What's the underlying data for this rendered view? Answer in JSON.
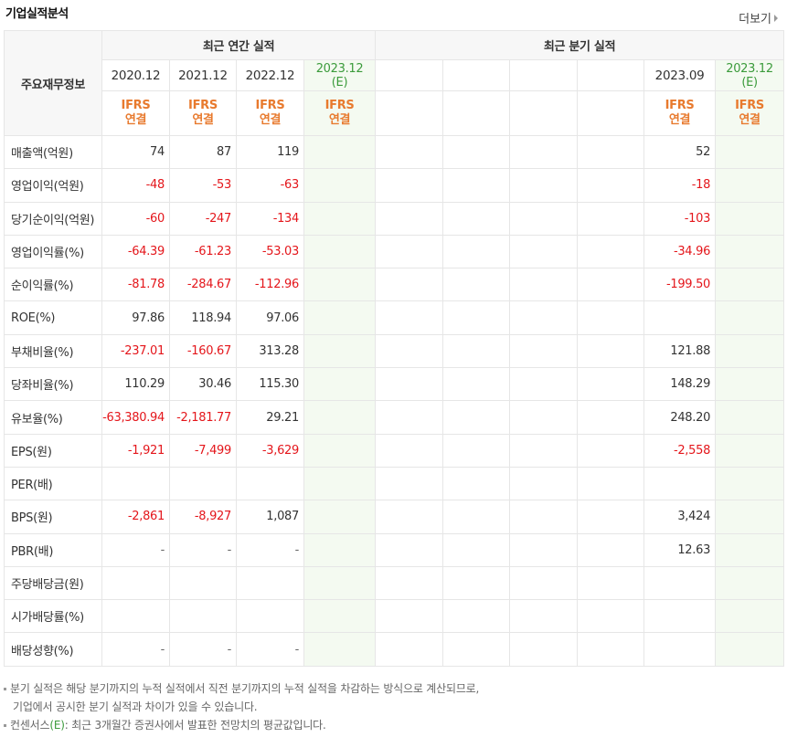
{
  "header": {
    "title": "기업실적분석",
    "more_label": "더보기"
  },
  "table": {
    "row_header_label": "주요재무정보",
    "annual_group_label": "최근 연간 실적",
    "quarter_group_label": "최근 분기 실적",
    "annual_periods": [
      "2020.12",
      "2021.12",
      "2022.12",
      "2023.12"
    ],
    "estimate_tag": "(E)",
    "quarter_periods": [
      "",
      "",
      "",
      "",
      "2023.09",
      "2023.12"
    ],
    "ifrs_label": "IFRS",
    "consolidated_label": "연결",
    "rows": [
      {
        "label": "매출액(억원)",
        "annual": [
          "74",
          "87",
          "119",
          ""
        ],
        "quarter": [
          "",
          "",
          "",
          "",
          "52",
          ""
        ]
      },
      {
        "label": "영업이익(억원)",
        "annual": [
          "-48",
          "-53",
          "-63",
          ""
        ],
        "quarter": [
          "",
          "",
          "",
          "",
          "-18",
          ""
        ]
      },
      {
        "label": "당기순이익(억원)",
        "annual": [
          "-60",
          "-247",
          "-134",
          ""
        ],
        "quarter": [
          "",
          "",
          "",
          "",
          "-103",
          ""
        ]
      },
      {
        "label": "영업이익률(%)",
        "annual": [
          "-64.39",
          "-61.23",
          "-53.03",
          ""
        ],
        "quarter": [
          "",
          "",
          "",
          "",
          "-34.96",
          ""
        ]
      },
      {
        "label": "순이익률(%)",
        "annual": [
          "-81.78",
          "-284.67",
          "-112.96",
          ""
        ],
        "quarter": [
          "",
          "",
          "",
          "",
          "-199.50",
          ""
        ]
      },
      {
        "label": "ROE(%)",
        "annual": [
          "97.86",
          "118.94",
          "97.06",
          ""
        ],
        "quarter": [
          "",
          "",
          "",
          "",
          "",
          ""
        ]
      },
      {
        "label": "부채비율(%)",
        "annual": [
          "-237.01",
          "-160.67",
          "313.28",
          ""
        ],
        "quarter": [
          "",
          "",
          "",
          "",
          "121.88",
          ""
        ]
      },
      {
        "label": "당좌비율(%)",
        "annual": [
          "110.29",
          "30.46",
          "115.30",
          ""
        ],
        "quarter": [
          "",
          "",
          "",
          "",
          "148.29",
          ""
        ]
      },
      {
        "label": "유보율(%)",
        "annual": [
          "-63,380.94",
          "-2,181.77",
          "29.21",
          ""
        ],
        "quarter": [
          "",
          "",
          "",
          "",
          "248.20",
          ""
        ]
      },
      {
        "label": "EPS(원)",
        "annual": [
          "-1,921",
          "-7,499",
          "-3,629",
          ""
        ],
        "quarter": [
          "",
          "",
          "",
          "",
          "-2,558",
          ""
        ]
      },
      {
        "label": "PER(배)",
        "annual": [
          "",
          "",
          "",
          ""
        ],
        "quarter": [
          "",
          "",
          "",
          "",
          "",
          ""
        ]
      },
      {
        "label": "BPS(원)",
        "annual": [
          "-2,861",
          "-8,927",
          "1,087",
          ""
        ],
        "quarter": [
          "",
          "",
          "",
          "",
          "3,424",
          ""
        ]
      },
      {
        "label": "PBR(배)",
        "annual": [
          "-",
          "-",
          "-",
          ""
        ],
        "quarter": [
          "",
          "",
          "",
          "",
          "12.63",
          ""
        ]
      },
      {
        "label": "주당배당금(원)",
        "annual": [
          "",
          "",
          "",
          ""
        ],
        "quarter": [
          "",
          "",
          "",
          "",
          "",
          ""
        ]
      },
      {
        "label": "시가배당률(%)",
        "annual": [
          "",
          "",
          "",
          ""
        ],
        "quarter": [
          "",
          "",
          "",
          "",
          "",
          ""
        ]
      },
      {
        "label": "배당성향(%)",
        "annual": [
          "-",
          "-",
          "-",
          ""
        ],
        "quarter": [
          "",
          "",
          "",
          "",
          "",
          ""
        ]
      }
    ]
  },
  "notes": {
    "line1": "분기 실적은 해당 분기까지의 누적 실적에서 직전 분기까지의 누적 실적을 차감하는 방식으로 계산되므로,",
    "line2": "기업에서 공시한 분기 실적과 차이가 있을 수 있습니다.",
    "line3_pre": "컨센서스",
    "line3_tag": "(E)",
    "line3_post": ": 최근 3개월간 증권사에서 발표한 전망치의 평균값입니다."
  },
  "colors": {
    "negative": "#e4161b",
    "ifrs": "#e87a2e",
    "estimate": "#3b9b3b",
    "estimate_bg": "#f4faf1"
  }
}
